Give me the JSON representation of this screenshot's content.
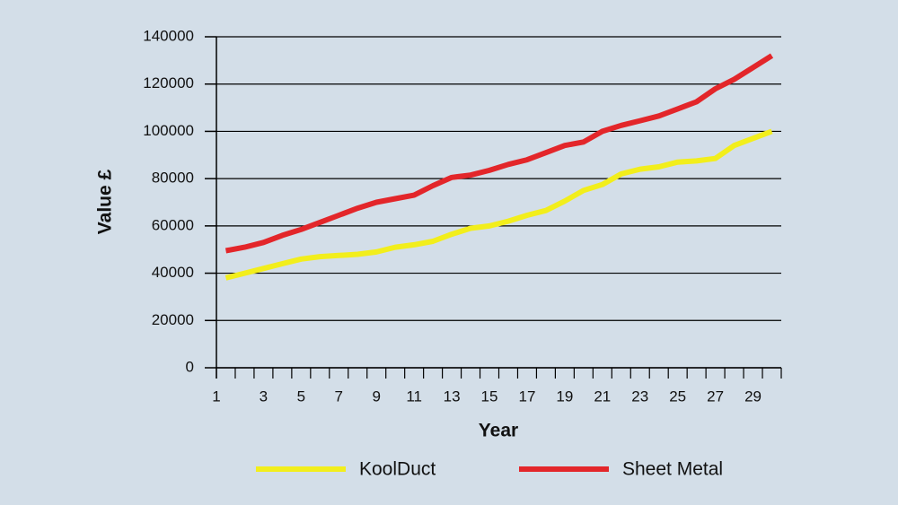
{
  "chart_data": {
    "type": "line",
    "x_label": "Year",
    "y_label": "Value £",
    "categories": [
      "1",
      null,
      "3",
      null,
      "5",
      null,
      "7",
      null,
      "9",
      null,
      "11",
      null,
      "13",
      null,
      "15",
      null,
      "17",
      null,
      "19",
      null,
      "21",
      null,
      "23",
      null,
      "25",
      null,
      "27",
      null,
      "29",
      null
    ],
    "series": [
      {
        "name": "KoolDuct",
        "color": "#f2ee1c",
        "values": [
          38000,
          40000,
          42000,
          44000,
          46000,
          47000,
          47500,
          48000,
          49000,
          51000,
          52000,
          53500,
          56500,
          59000,
          60000,
          62000,
          64500,
          66500,
          70500,
          75000,
          77500,
          82000,
          84000,
          85000,
          87000,
          87500,
          88500,
          94000,
          97000,
          100000
        ]
      },
      {
        "name": "Sheet Metal",
        "color": "#e3262a",
        "values": [
          49500,
          51000,
          53000,
          56000,
          58500,
          61500,
          64500,
          67500,
          70000,
          71500,
          73000,
          77000,
          80500,
          81500,
          83500,
          86000,
          88000,
          91000,
          94000,
          95500,
          100000,
          102500,
          104500,
          106500,
          109500,
          112500,
          118000,
          122000,
          127000,
          132000
        ]
      }
    ],
    "ylim": [
      0,
      140000
    ],
    "yticks": [
      0,
      20000,
      40000,
      60000,
      80000,
      100000,
      120000,
      140000
    ],
    "grid": true,
    "legend": "bottom"
  }
}
